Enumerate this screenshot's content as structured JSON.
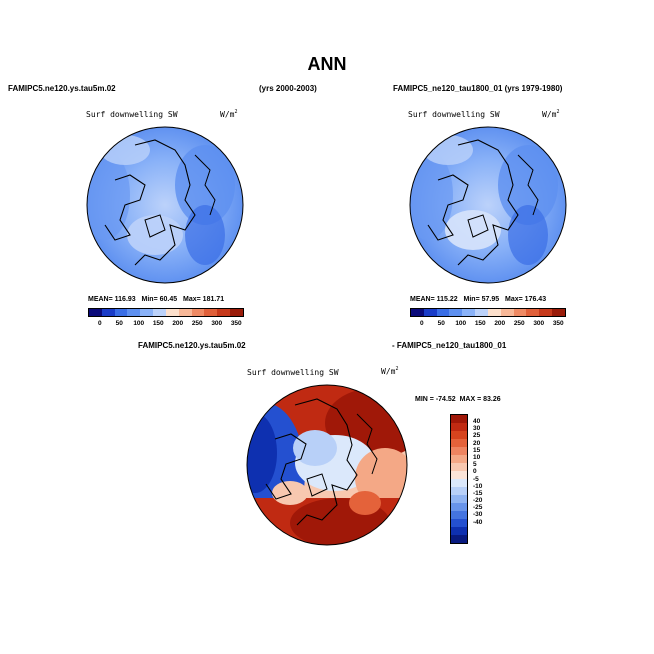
{
  "figure": {
    "title": "ANN",
    "left_case": "FAMIPC5.ne120.ys.tau5m.02",
    "center_years": "(yrs 2000-2003)",
    "right_case": "FAMIPC5_ne120_tau1800_01 (yrs 1979-1980)",
    "diff_left": "FAMIPC5.ne120.ys.tau5m.02",
    "diff_right": "- FAMIPC5_ne120_tau1800_01"
  },
  "panels": [
    {
      "label": "Surf downwelling SW",
      "units": "W/m",
      "units_sup": "2",
      "mean_label": "MEAN=",
      "mean": "116.93",
      "min_label": "Min=",
      "min": "60.45",
      "max_label": "Max=",
      "max": "181.71"
    },
    {
      "label": "Surf downwelling SW",
      "units": "W/m",
      "units_sup": "2",
      "mean_label": "MEAN=",
      "mean": "115.22",
      "min_label": "Min=",
      "min": "57.95",
      "max_label": "Max=",
      "max": "176.43"
    }
  ],
  "diff_panel": {
    "label": "Surf downwelling SW",
    "units": "W/m",
    "units_sup": "2",
    "min_label": "MIN =",
    "min": "-74.52",
    "max_label": "MAX =",
    "max": "83.26"
  },
  "abs_colorbar": {
    "ticks": [
      "0",
      "50",
      "100",
      "150",
      "200",
      "250",
      "300",
      "350"
    ],
    "colors": [
      "#0a0a7a",
      "#1a3cc8",
      "#3a6ee6",
      "#5e90f0",
      "#8ab2f8",
      "#bcd2fa",
      "#fde0cc",
      "#f8b898",
      "#ef8a64",
      "#e0603a",
      "#c73a1c",
      "#9a1c0a"
    ]
  },
  "diff_colorbar": {
    "ticks": [
      "40",
      "30",
      "25",
      "20",
      "15",
      "10",
      "5",
      "0",
      "-5",
      "-10",
      "-15",
      "-20",
      "-25",
      "-30",
      "-40"
    ],
    "colors": [
      "#a01808",
      "#c02a12",
      "#d6441e",
      "#e4623a",
      "#ee8460",
      "#f4a886",
      "#f8c8b0",
      "#fbe4d8",
      "#dbe8fb",
      "#b8d0f8",
      "#90b4f2",
      "#6894ea",
      "#4474e0",
      "#2450d0",
      "#0e30b0",
      "#081a80"
    ]
  },
  "chart_data": {
    "type": "heatmap",
    "title": "ANN",
    "variable": "Surf downwelling SW",
    "units": "W/m^2",
    "projection": "north polar stereographic",
    "panels": [
      {
        "case": "FAMIPC5.ne120.ys.tau5m.02",
        "years": "2000-2003",
        "mean": 116.93,
        "min": 60.45,
        "max": 181.71,
        "levels": [
          0,
          350
        ]
      },
      {
        "case": "FAMIPC5_ne120_tau1800_01",
        "years": "1979-1980",
        "mean": 115.22,
        "min": 57.95,
        "max": 176.43,
        "levels": [
          0,
          350
        ]
      },
      {
        "case": "FAMIPC5.ne120.ys.tau5m.02 - FAMIPC5_ne120_tau1800_01",
        "min": -74.52,
        "max": 83.26,
        "levels": [
          -40,
          40
        ]
      }
    ]
  }
}
